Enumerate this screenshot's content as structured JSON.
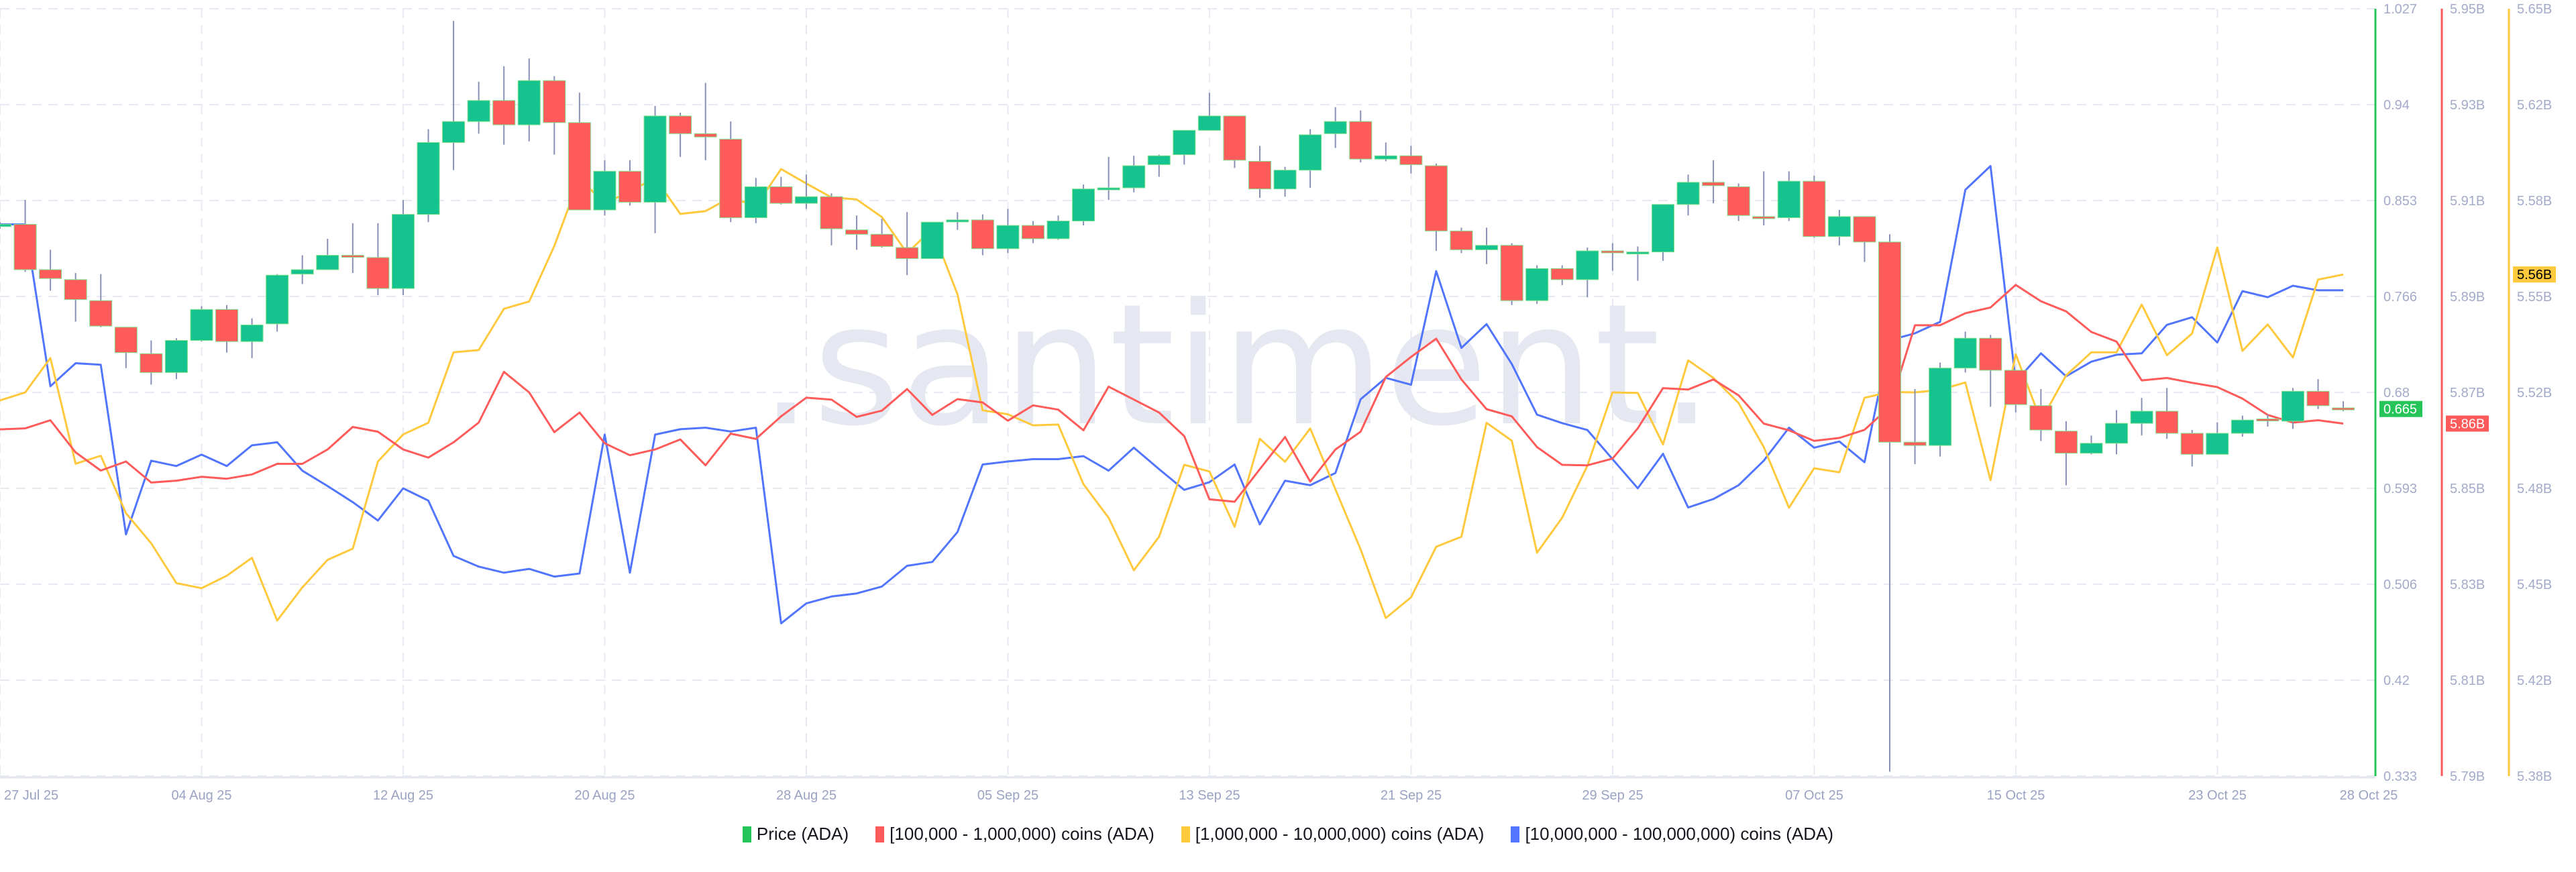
{
  "watermark": ".santiment.",
  "legend": [
    {
      "label": "Price (ADA)",
      "color": "#26c55a"
    },
    {
      "label": "[100,000 - 1,000,000) coins (ADA)",
      "color": "#ff5b5a"
    },
    {
      "label": "[1,000,000 - 10,000,000) coins (ADA)",
      "color": "#ffc93d"
    },
    {
      "label": "[10,000,000 - 100,000,000) coins (ADA)",
      "color": "#5275ff"
    }
  ],
  "chart_data": {
    "type": "candlestick+line",
    "grid": true,
    "legend_position": "bottom",
    "x_tick_labels": [
      "27 Jul 25",
      "04 Aug 25",
      "12 Aug 25",
      "20 Aug 25",
      "28 Aug 25",
      "05 Sep 25",
      "13 Sep 25",
      "21 Sep 25",
      "29 Sep 25",
      "07 Oct 25",
      "15 Oct 25",
      "23 Oct 25",
      "28 Oct 25"
    ],
    "dates": [
      "27 Jul",
      "28 Jul",
      "29 Jul",
      "30 Jul",
      "31 Jul",
      "01 Aug",
      "02 Aug",
      "03 Aug",
      "04 Aug",
      "05 Aug",
      "06 Aug",
      "07 Aug",
      "08 Aug",
      "09 Aug",
      "10 Aug",
      "11 Aug",
      "12 Aug",
      "13 Aug",
      "14 Aug",
      "15 Aug",
      "16 Aug",
      "17 Aug",
      "18 Aug",
      "19 Aug",
      "20 Aug",
      "21 Aug",
      "22 Aug",
      "23 Aug",
      "24 Aug",
      "25 Aug",
      "26 Aug",
      "27 Aug",
      "28 Aug",
      "29 Aug",
      "30 Aug",
      "31 Aug",
      "01 Sep",
      "02 Sep",
      "03 Sep",
      "04 Sep",
      "05 Sep",
      "06 Sep",
      "07 Sep",
      "08 Sep",
      "09 Sep",
      "10 Sep",
      "11 Sep",
      "12 Sep",
      "13 Sep",
      "14 Sep",
      "15 Sep",
      "16 Sep",
      "17 Sep",
      "18 Sep",
      "19 Sep",
      "20 Sep",
      "21 Sep",
      "22 Sep",
      "23 Sep",
      "24 Sep",
      "25 Sep",
      "26 Sep",
      "27 Sep",
      "28 Sep",
      "29 Sep",
      "30 Sep",
      "01 Oct",
      "02 Oct",
      "03 Oct",
      "04 Oct",
      "05 Oct",
      "06 Oct",
      "07 Oct",
      "08 Oct",
      "09 Oct",
      "10 Oct",
      "11 Oct",
      "12 Oct",
      "13 Oct",
      "14 Oct",
      "15 Oct",
      "16 Oct",
      "17 Oct",
      "18 Oct",
      "19 Oct",
      "20 Oct",
      "21 Oct",
      "22 Oct",
      "23 Oct",
      "24 Oct",
      "25 Oct",
      "26 Oct",
      "27 Oct",
      "28 Oct"
    ],
    "price": {
      "name": "Price (ADA)",
      "axis_ticks": [
        "1.027",
        "0.94",
        "0.853",
        "0.766",
        "0.68",
        "0.593",
        "0.506",
        "0.42",
        "0.333"
      ],
      "ylim": [
        0.333,
        1.027
      ],
      "last_value_label": "0.665",
      "up_color": "#14c38e",
      "down_color": "#ff5b5a",
      "axis_color": "#26c55a",
      "ohlc": [
        [
          0.83,
          0.834,
          0.828,
          0.832
        ],
        [
          0.832,
          0.854,
          0.789,
          0.791
        ],
        [
          0.791,
          0.809,
          0.772,
          0.783
        ],
        [
          0.782,
          0.788,
          0.744,
          0.764
        ],
        [
          0.763,
          0.787,
          0.739,
          0.74
        ],
        [
          0.739,
          0.739,
          0.702,
          0.716
        ],
        [
          0.715,
          0.727,
          0.687,
          0.698
        ],
        [
          0.698,
          0.729,
          0.692,
          0.727
        ],
        [
          0.727,
          0.758,
          0.726,
          0.755
        ],
        [
          0.755,
          0.759,
          0.716,
          0.726
        ],
        [
          0.726,
          0.747,
          0.711,
          0.741
        ],
        [
          0.742,
          0.787,
          0.735,
          0.786
        ],
        [
          0.787,
          0.804,
          0.778,
          0.791
        ],
        [
          0.791,
          0.819,
          0.791,
          0.804
        ],
        [
          0.804,
          0.833,
          0.788,
          0.803
        ],
        [
          0.802,
          0.833,
          0.768,
          0.774
        ],
        [
          0.774,
          0.854,
          0.768,
          0.841
        ],
        [
          0.841,
          0.918,
          0.834,
          0.906
        ],
        [
          0.906,
          1.016,
          0.881,
          0.925
        ],
        [
          0.925,
          0.961,
          0.914,
          0.944
        ],
        [
          0.944,
          0.975,
          0.904,
          0.922
        ],
        [
          0.922,
          0.982,
          0.907,
          0.962
        ],
        [
          0.962,
          0.966,
          0.895,
          0.924
        ],
        [
          0.924,
          0.951,
          0.845,
          0.845
        ],
        [
          0.845,
          0.89,
          0.84,
          0.88
        ],
        [
          0.88,
          0.89,
          0.849,
          0.852
        ],
        [
          0.852,
          0.939,
          0.824,
          0.93
        ],
        [
          0.93,
          0.933,
          0.893,
          0.914
        ],
        [
          0.914,
          0.96,
          0.89,
          0.911
        ],
        [
          0.909,
          0.925,
          0.834,
          0.838
        ],
        [
          0.838,
          0.874,
          0.833,
          0.866
        ],
        [
          0.866,
          0.875,
          0.85,
          0.851
        ],
        [
          0.851,
          0.877,
          0.846,
          0.857
        ],
        [
          0.857,
          0.86,
          0.813,
          0.828
        ],
        [
          0.827,
          0.84,
          0.809,
          0.823
        ],
        [
          0.823,
          0.837,
          0.811,
          0.812
        ],
        [
          0.811,
          0.843,
          0.786,
          0.801
        ],
        [
          0.801,
          0.834,
          0.801,
          0.834
        ],
        [
          0.835,
          0.843,
          0.827,
          0.836
        ],
        [
          0.836,
          0.841,
          0.804,
          0.81
        ],
        [
          0.81,
          0.846,
          0.806,
          0.831
        ],
        [
          0.831,
          0.835,
          0.815,
          0.819
        ],
        [
          0.819,
          0.84,
          0.818,
          0.835
        ],
        [
          0.835,
          0.868,
          0.831,
          0.864
        ],
        [
          0.864,
          0.893,
          0.854,
          0.865
        ],
        [
          0.865,
          0.894,
          0.861,
          0.885
        ],
        [
          0.886,
          0.895,
          0.875,
          0.894
        ],
        [
          0.895,
          0.917,
          0.886,
          0.917
        ],
        [
          0.917,
          0.951,
          0.917,
          0.93
        ],
        [
          0.93,
          0.93,
          0.883,
          0.89
        ],
        [
          0.889,
          0.903,
          0.856,
          0.864
        ],
        [
          0.864,
          0.884,
          0.857,
          0.881
        ],
        [
          0.881,
          0.918,
          0.865,
          0.913
        ],
        [
          0.914,
          0.938,
          0.901,
          0.925
        ],
        [
          0.925,
          0.935,
          0.888,
          0.891
        ],
        [
          0.891,
          0.906,
          0.889,
          0.894
        ],
        [
          0.894,
          0.903,
          0.878,
          0.886
        ],
        [
          0.885,
          0.887,
          0.808,
          0.826
        ],
        [
          0.826,
          0.829,
          0.806,
          0.809
        ],
        [
          0.809,
          0.829,
          0.796,
          0.813
        ],
        [
          0.813,
          0.815,
          0.759,
          0.763
        ],
        [
          0.763,
          0.795,
          0.76,
          0.792
        ],
        [
          0.792,
          0.795,
          0.777,
          0.782
        ],
        [
          0.782,
          0.811,
          0.766,
          0.808
        ],
        [
          0.808,
          0.815,
          0.79,
          0.807
        ],
        [
          0.807,
          0.812,
          0.781,
          0.807
        ],
        [
          0.807,
          0.85,
          0.799,
          0.85
        ],
        [
          0.85,
          0.877,
          0.84,
          0.87
        ],
        [
          0.87,
          0.89,
          0.851,
          0.867
        ],
        [
          0.866,
          0.869,
          0.835,
          0.84
        ],
        [
          0.839,
          0.88,
          0.831,
          0.838
        ],
        [
          0.838,
          0.88,
          0.835,
          0.871
        ],
        [
          0.871,
          0.876,
          0.82,
          0.821
        ],
        [
          0.821,
          0.845,
          0.813,
          0.839
        ],
        [
          0.839,
          0.839,
          0.798,
          0.816
        ],
        [
          0.816,
          0.823,
          0.337,
          0.635
        ],
        [
          0.635,
          0.683,
          0.615,
          0.632
        ],
        [
          0.632,
          0.707,
          0.622,
          0.702
        ],
        [
          0.702,
          0.735,
          0.698,
          0.729
        ],
        [
          0.729,
          0.732,
          0.667,
          0.7
        ],
        [
          0.7,
          0.7,
          0.662,
          0.669
        ],
        [
          0.668,
          0.683,
          0.636,
          0.646
        ],
        [
          0.645,
          0.654,
          0.596,
          0.625
        ],
        [
          0.625,
          0.641,
          0.624,
          0.634
        ],
        [
          0.634,
          0.664,
          0.624,
          0.652
        ],
        [
          0.652,
          0.675,
          0.641,
          0.663
        ],
        [
          0.663,
          0.684,
          0.638,
          0.643
        ],
        [
          0.643,
          0.646,
          0.613,
          0.624
        ],
        [
          0.624,
          0.653,
          0.624,
          0.643
        ],
        [
          0.643,
          0.659,
          0.64,
          0.655
        ],
        [
          0.656,
          0.66,
          0.649,
          0.655
        ],
        [
          0.654,
          0.684,
          0.647,
          0.681
        ],
        [
          0.681,
          0.692,
          0.665,
          0.668
        ],
        [
          0.666,
          0.672,
          0.663,
          0.665
        ]
      ]
    },
    "series": [
      {
        "name": "[100,000 - 1,000,000) coins (ADA)",
        "color": "#ff5b5a",
        "unit": "B",
        "axis_ticks": [
          "5.95B",
          "5.93B",
          "5.91B",
          "5.89B",
          "5.87B",
          "5.85B",
          "5.83B",
          "5.81B",
          "5.79B"
        ],
        "ylim": [
          5.79,
          5.95
        ],
        "last_value_label": "5.86B",
        "values": [
          5.8623,
          5.8625,
          5.8642,
          5.8575,
          5.8537,
          5.8556,
          5.8512,
          5.8516,
          5.8524,
          5.852,
          5.8529,
          5.8551,
          5.8551,
          5.8581,
          5.8628,
          5.8618,
          5.8581,
          5.8564,
          5.8596,
          5.8637,
          5.8743,
          5.87,
          5.8617,
          5.8658,
          5.8594,
          5.8569,
          5.8581,
          5.8602,
          5.8548,
          5.8614,
          5.8603,
          5.865,
          5.8689,
          5.8685,
          5.8649,
          5.8662,
          5.8707,
          5.8653,
          5.8686,
          5.8679,
          5.8641,
          5.8673,
          5.8664,
          5.8621,
          5.8712,
          5.8685,
          5.8658,
          5.8609,
          5.8477,
          5.8472,
          5.854,
          5.8607,
          5.8514,
          5.8581,
          5.8618,
          5.8732,
          5.8774,
          5.8812,
          5.8727,
          5.8665,
          5.865,
          5.8586,
          5.8549,
          5.8548,
          5.8562,
          5.8625,
          5.8709,
          5.8706,
          5.8727,
          5.8694,
          5.8635,
          5.8621,
          5.8599,
          5.8605,
          5.8622,
          5.867,
          5.884,
          5.884,
          5.8865,
          5.8877,
          5.8924,
          5.889,
          5.8869,
          5.8826,
          5.8806,
          5.8725,
          5.873,
          5.872,
          5.8711,
          5.8687,
          5.8653,
          5.8637,
          5.8642,
          5.8635
        ]
      },
      {
        "name": "[1,000,000 - 10,000,000) coins (ADA)",
        "color": "#ffc93d",
        "unit": "B",
        "axis_ticks": [
          "5.65B",
          "5.62B",
          "5.58B",
          "5.55B",
          "5.52B",
          "5.48B",
          "5.45B",
          "5.42B",
          "5.38B"
        ],
        "ylim": [
          5.38,
          5.65
        ],
        "last_value_label": "5.56B",
        "values": [
          5.5122,
          5.515,
          5.5271,
          5.4899,
          5.4927,
          5.4725,
          5.4619,
          5.4479,
          5.4461,
          5.4505,
          5.4568,
          5.4347,
          5.4464,
          5.4561,
          5.46,
          5.4907,
          5.5002,
          5.5043,
          5.5291,
          5.5299,
          5.5444,
          5.547,
          5.5665,
          5.5904,
          5.5814,
          5.5858,
          5.5904,
          5.5778,
          5.5788,
          5.5836,
          5.5806,
          5.5936,
          5.5885,
          5.5836,
          5.5829,
          5.5767,
          5.564,
          5.5725,
          5.5495,
          5.5087,
          5.5073,
          5.5034,
          5.5037,
          5.4827,
          5.4709,
          5.4524,
          5.4642,
          5.4895,
          5.4872,
          5.4677,
          5.4987,
          5.4906,
          5.5023,
          5.4809,
          5.4598,
          5.4356,
          5.4429,
          5.4607,
          5.4642,
          5.5043,
          5.498,
          5.4586,
          5.4709,
          5.4892,
          5.515,
          5.5148,
          5.4967,
          5.5263,
          5.5201,
          5.5113,
          5.4958,
          5.4744,
          5.4883,
          5.4869,
          5.5131,
          5.5152,
          5.515,
          5.5159,
          5.5185,
          5.4841,
          5.5284,
          5.505,
          5.521,
          5.5291,
          5.5291,
          5.5459,
          5.5281,
          5.5357,
          5.566,
          5.5296,
          5.5389,
          5.5273,
          5.5547,
          5.5565
        ]
      },
      {
        "name": "[10,000,000 - 100,000,000) coins (ADA)",
        "color": "#5275ff",
        "axis": "hidden (relative level 0-100)",
        "ylim": [
          0,
          100
        ],
        "values": [
          71.9,
          71.9,
          50.8,
          53.8,
          53.6,
          31.5,
          41.1,
          40.4,
          41.9,
          40.4,
          43.1,
          43.5,
          39.8,
          37.8,
          35.7,
          33.3,
          37.5,
          35.9,
          28.7,
          27.3,
          26.5,
          27.0,
          26.0,
          26.4,
          44.5,
          26.5,
          44.5,
          45.2,
          45.4,
          44.9,
          45.4,
          19.9,
          22.5,
          23.4,
          23.8,
          24.7,
          27.4,
          27.9,
          31.8,
          40.6,
          41.0,
          41.3,
          41.3,
          41.7,
          39.8,
          42.8,
          40.0,
          37.3,
          38.3,
          40.6,
          32.8,
          38.5,
          37.9,
          39.5,
          49.1,
          51.9,
          51.0,
          65.8,
          55.8,
          58.9,
          53.7,
          47.1,
          46.0,
          45.1,
          41.3,
          37.5,
          42.0,
          35.0,
          36.1,
          37.9,
          41.1,
          45.4,
          42.8,
          43.6,
          40.9,
          56.8,
          57.7,
          59.2,
          76.4,
          79.5,
          51.4,
          55.1,
          52.1,
          54.0,
          54.9,
          55.1,
          58.8,
          59.8,
          56.5,
          63.2,
          62.4,
          63.9,
          63.3,
          63.3
        ]
      }
    ]
  }
}
